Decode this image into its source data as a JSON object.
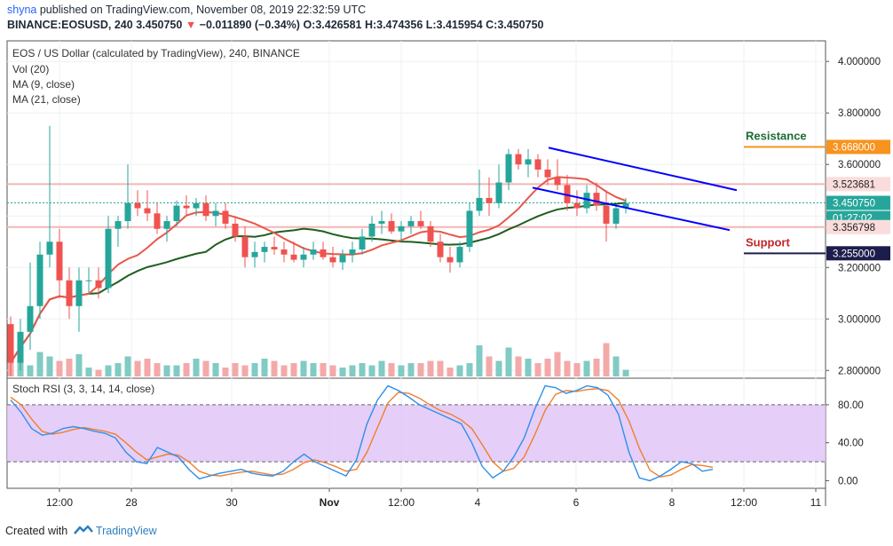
{
  "header": {
    "user": "shyna",
    "published": "published on TradingView.com, November 08, 2019 22:32:59 UTC",
    "symbol": "BINANCE:EOSUSD, 240",
    "last": "3.450750",
    "arrow": "▼",
    "change": "−0.011890 (−0.34%)",
    "ohlc": "O:3.426581 H:3.474356 L:3.415954 C:3.450750"
  },
  "legend": {
    "title": "EOS / US Dollar (calculated by TradingView), 240, BINANCE",
    "vol": "Vol (20)",
    "ma9": "MA (9, close)",
    "ma21": "MA (21, close)",
    "rsi": "Stoch RSI (3, 3, 14, 14, close)"
  },
  "footer": {
    "created_with": "Created with",
    "brand": "TradingView"
  },
  "colors": {
    "up": "#26a69a",
    "down": "#ef5350",
    "vol_up": "#80cbc4",
    "vol_down": "#f4a9a9",
    "ma9": "#e8574a",
    "ma21": "#1f5e1f",
    "channel": "#0000ff",
    "resistance": "#f7931e",
    "support": "#1c1d4c",
    "current": "#26a69a",
    "rsi_band": "#e1c5f7",
    "k": "#2f8fe8",
    "d": "#f07f2c"
  },
  "chart_data": [
    {
      "type": "candlestick",
      "y_axis_ticks": [
        "2.800000",
        "3.000000",
        "3.200000",
        "3.400000",
        "3.600000",
        "3.800000",
        "4.000000"
      ],
      "ylim": [
        2.77,
        4.08
      ],
      "x_axis_ticks": [
        "12:00",
        "28",
        "30",
        "Nov",
        "12:00",
        "4",
        "6",
        "8",
        "12:00",
        "11"
      ],
      "candles": [
        [
          2.98,
          3.01,
          2.78,
          2.83
        ],
        [
          2.83,
          3.0,
          2.8,
          2.95
        ],
        [
          2.95,
          3.22,
          2.88,
          3.05
        ],
        [
          3.05,
          3.3,
          3.0,
          3.25
        ],
        [
          3.25,
          3.75,
          3.2,
          3.3
        ],
        [
          3.3,
          3.35,
          3.08,
          3.15
        ],
        [
          3.15,
          3.2,
          3.0,
          3.05
        ],
        [
          3.05,
          3.2,
          2.95,
          3.15
        ],
        [
          3.15,
          3.2,
          3.1,
          3.15
        ],
        [
          3.15,
          3.2,
          3.08,
          3.12
        ],
        [
          3.12,
          3.4,
          3.1,
          3.35
        ],
        [
          3.35,
          3.4,
          3.28,
          3.38
        ],
        [
          3.38,
          3.6,
          3.35,
          3.45
        ],
        [
          3.45,
          3.5,
          3.4,
          3.43
        ],
        [
          3.43,
          3.5,
          3.38,
          3.41
        ],
        [
          3.41,
          3.45,
          3.33,
          3.35
        ],
        [
          3.35,
          3.4,
          3.3,
          3.38
        ],
        [
          3.38,
          3.46,
          3.36,
          3.44
        ],
        [
          3.44,
          3.48,
          3.4,
          3.43
        ],
        [
          3.43,
          3.47,
          3.4,
          3.45
        ],
        [
          3.45,
          3.48,
          3.38,
          3.4
        ],
        [
          3.4,
          3.45,
          3.36,
          3.42
        ],
        [
          3.42,
          3.45,
          3.35,
          3.37
        ],
        [
          3.37,
          3.4,
          3.3,
          3.32
        ],
        [
          3.32,
          3.36,
          3.2,
          3.24
        ],
        [
          3.24,
          3.3,
          3.2,
          3.26
        ],
        [
          3.26,
          3.3,
          3.22,
          3.28
        ],
        [
          3.28,
          3.32,
          3.25,
          3.27
        ],
        [
          3.27,
          3.3,
          3.22,
          3.25
        ],
        [
          3.25,
          3.3,
          3.22,
          3.23
        ],
        [
          3.23,
          3.28,
          3.2,
          3.25
        ],
        [
          3.25,
          3.3,
          3.23,
          3.27
        ],
        [
          3.27,
          3.3,
          3.23,
          3.24
        ],
        [
          3.24,
          3.28,
          3.2,
          3.22
        ],
        [
          3.22,
          3.27,
          3.19,
          3.25
        ],
        [
          3.25,
          3.3,
          3.22,
          3.27
        ],
        [
          3.27,
          3.35,
          3.25,
          3.32
        ],
        [
          3.32,
          3.4,
          3.3,
          3.37
        ],
        [
          3.37,
          3.42,
          3.33,
          3.38
        ],
        [
          3.38,
          3.41,
          3.33,
          3.34
        ],
        [
          3.34,
          3.38,
          3.3,
          3.36
        ],
        [
          3.36,
          3.4,
          3.33,
          3.38
        ],
        [
          3.38,
          3.42,
          3.35,
          3.36
        ],
        [
          3.36,
          3.38,
          3.28,
          3.3
        ],
        [
          3.3,
          3.33,
          3.22,
          3.24
        ],
        [
          3.24,
          3.28,
          3.18,
          3.22
        ],
        [
          3.22,
          3.3,
          3.2,
          3.28
        ],
        [
          3.28,
          3.45,
          3.26,
          3.42
        ],
        [
          3.42,
          3.58,
          3.4,
          3.47
        ],
        [
          3.47,
          3.55,
          3.4,
          3.45
        ],
        [
          3.45,
          3.6,
          3.43,
          3.53
        ],
        [
          3.53,
          3.66,
          3.5,
          3.64
        ],
        [
          3.64,
          3.66,
          3.58,
          3.6
        ],
        [
          3.6,
          3.66,
          3.55,
          3.62
        ],
        [
          3.62,
          3.64,
          3.55,
          3.58
        ],
        [
          3.58,
          3.62,
          3.52,
          3.55
        ],
        [
          3.55,
          3.62,
          3.5,
          3.52
        ],
        [
          3.52,
          3.56,
          3.42,
          3.45
        ],
        [
          3.45,
          3.5,
          3.4,
          3.43
        ],
        [
          3.43,
          3.52,
          3.41,
          3.49
        ],
        [
          3.49,
          3.53,
          3.42,
          3.44
        ],
        [
          3.44,
          3.5,
          3.3,
          3.37
        ],
        [
          3.37,
          3.44,
          3.35,
          3.43
        ],
        [
          3.43,
          3.47,
          3.41,
          3.45
        ]
      ],
      "volume": [
        0.95,
        0.7,
        0.25,
        0.55,
        0.45,
        0.35,
        0.4,
        0.5,
        0.2,
        0.15,
        0.25,
        0.3,
        0.45,
        0.35,
        0.4,
        0.3,
        0.25,
        0.25,
        0.3,
        0.4,
        0.35,
        0.3,
        0.2,
        0.3,
        0.25,
        0.3,
        0.4,
        0.35,
        0.25,
        0.3,
        0.35,
        0.3,
        0.3,
        0.25,
        0.2,
        0.25,
        0.3,
        0.25,
        0.35,
        0.3,
        0.25,
        0.3,
        0.3,
        0.35,
        0.35,
        0.2,
        0.25,
        0.3,
        0.7,
        0.45,
        0.35,
        0.65,
        0.45,
        0.4,
        0.3,
        0.4,
        0.55,
        0.35,
        0.3,
        0.35,
        0.4,
        0.75,
        0.45,
        0.15
      ],
      "price_labels": [
        "3.668000",
        "3.523681",
        "3.450750",
        "01:27:02",
        "3.356798",
        "3.255000"
      ],
      "annotations": [
        "Resistance",
        "Support"
      ]
    },
    {
      "type": "line",
      "name": "Stoch RSI",
      "y_axis_ticks": [
        "0.00",
        "40.00",
        "80.00"
      ],
      "band": [
        20,
        80
      ],
      "ylim": [
        -8,
        108
      ],
      "k": [
        85,
        72,
        55,
        48,
        50,
        55,
        57,
        55,
        52,
        50,
        45,
        30,
        20,
        18,
        35,
        30,
        25,
        12,
        2,
        5,
        8,
        10,
        12,
        8,
        6,
        5,
        10,
        20,
        28,
        20,
        15,
        10,
        5,
        22,
        60,
        85,
        100,
        95,
        88,
        80,
        75,
        70,
        65,
        60,
        40,
        15,
        3,
        10,
        25,
        45,
        75,
        100,
        98,
        92,
        95,
        100,
        98,
        90,
        70,
        30,
        3,
        0,
        5,
        12,
        20,
        18,
        10,
        12
      ],
      "d": [
        88,
        80,
        65,
        52,
        49,
        51,
        54,
        56,
        54,
        52,
        49,
        40,
        30,
        22,
        25,
        28,
        27,
        20,
        10,
        6,
        5,
        7,
        9,
        10,
        8,
        6,
        7,
        12,
        19,
        22,
        19,
        15,
        10,
        12,
        30,
        56,
        82,
        93,
        92,
        87,
        80,
        74,
        70,
        64,
        55,
        38,
        20,
        10,
        13,
        25,
        48,
        74,
        91,
        95,
        94,
        96,
        97,
        95,
        85,
        63,
        34,
        11,
        4,
        6,
        12,
        17,
        16,
        14
      ]
    }
  ]
}
